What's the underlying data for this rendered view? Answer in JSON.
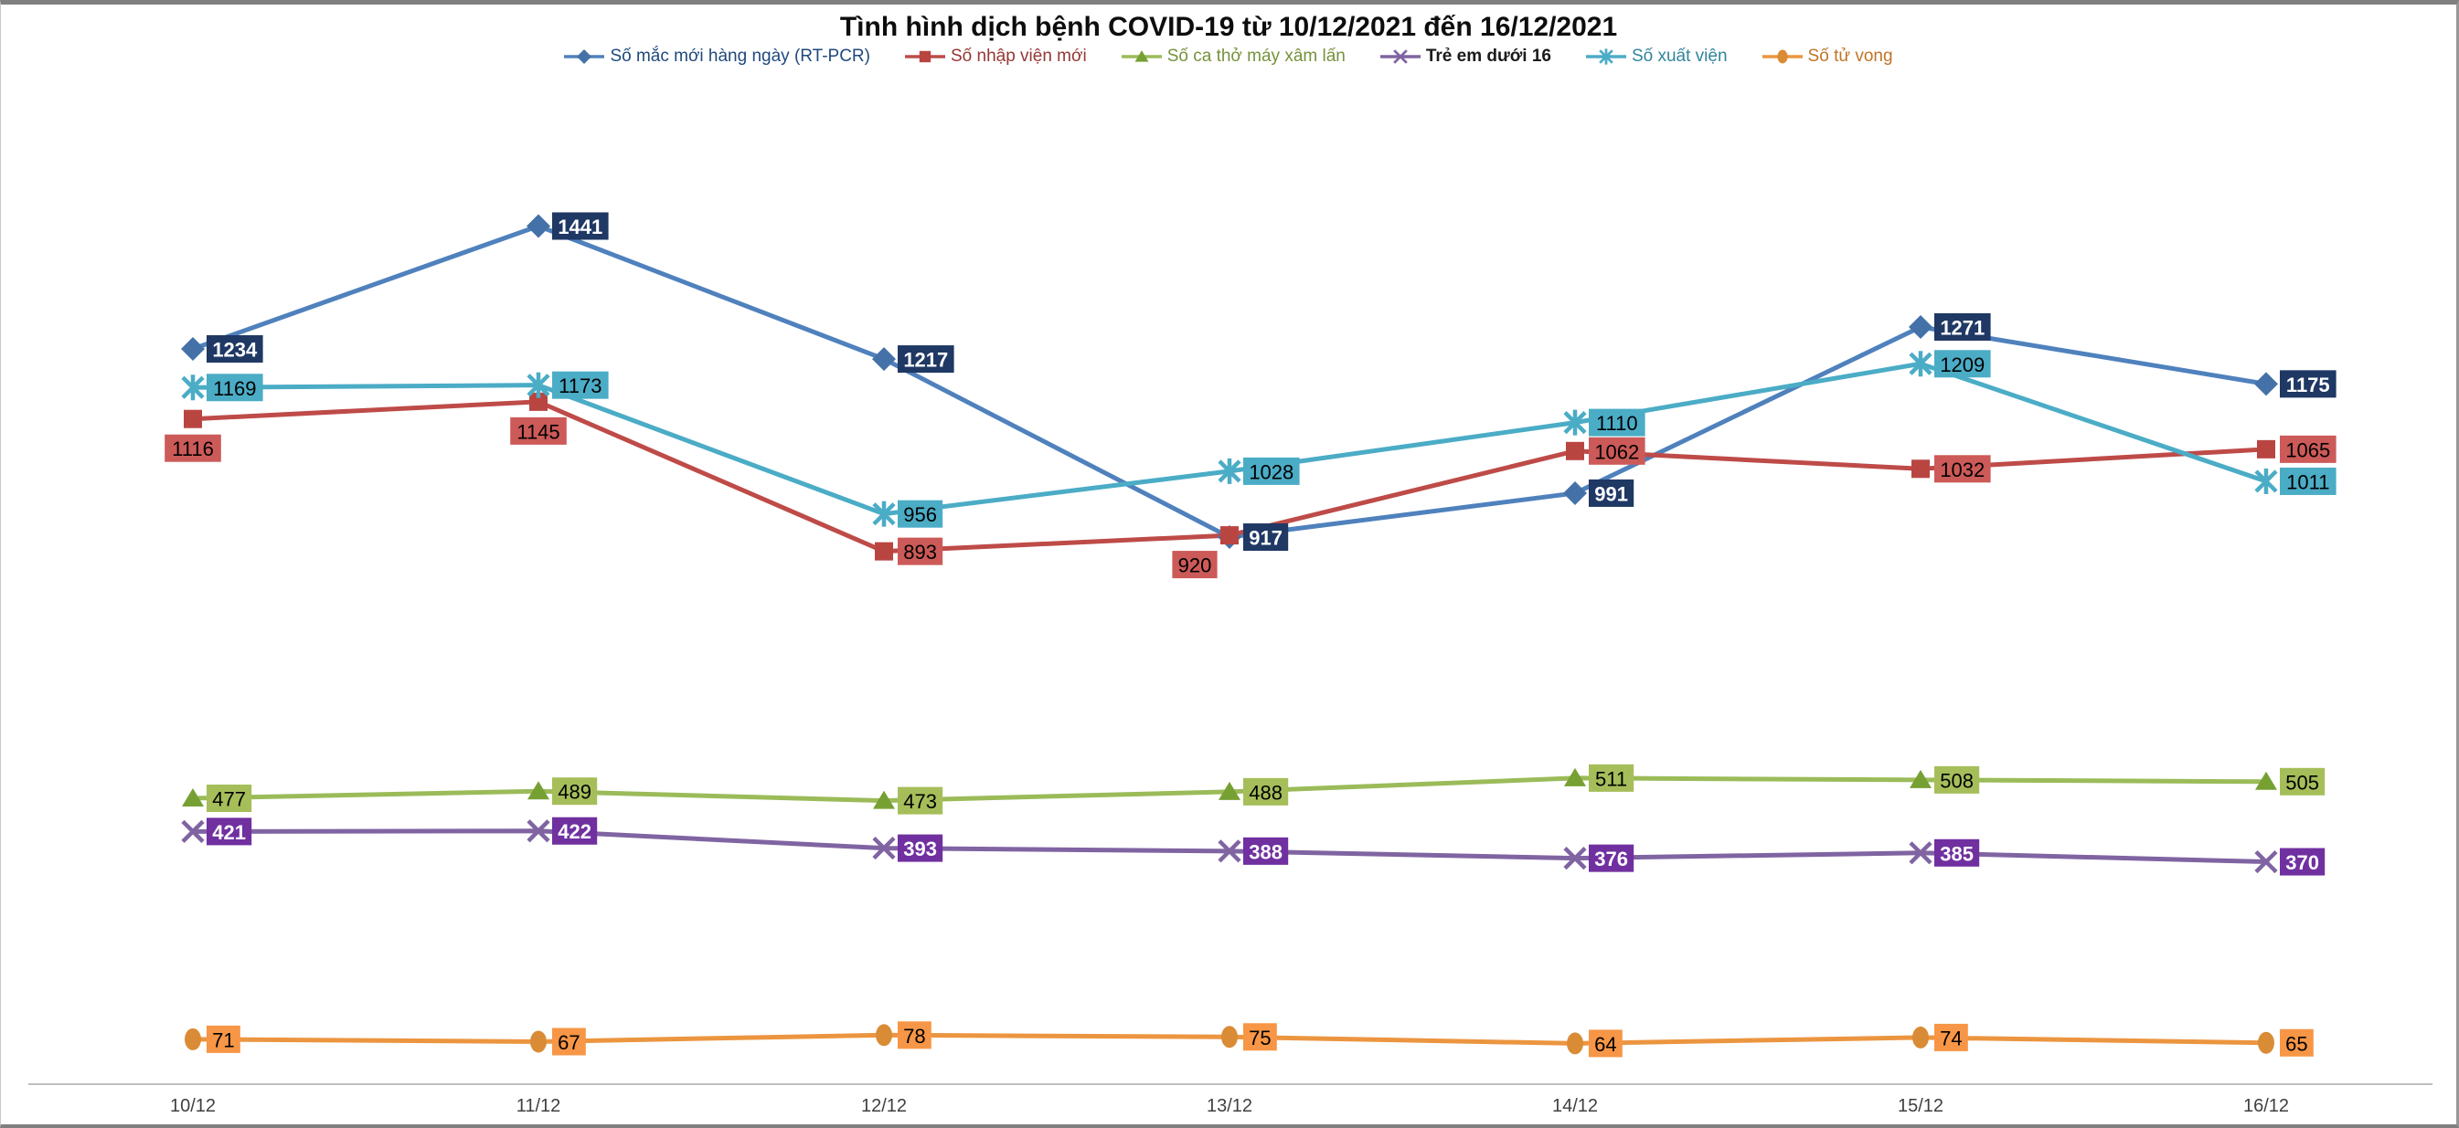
{
  "title": "Tình hình dịch bệnh COVID-19 từ 10/12/2021 đến 16/12/2021",
  "chart_data": {
    "type": "line",
    "title": "Tình hình dịch bệnh COVID-19 từ 10/12/2021 đến 16/12/2021",
    "categories": [
      "10/12",
      "11/12",
      "12/12",
      "13/12",
      "14/12",
      "15/12",
      "16/12"
    ],
    "xlabel": "",
    "ylabel": "",
    "ylim": [
      0,
      1550
    ],
    "grid": false,
    "legend_position": "top",
    "axis_line_color": "#BFBFBF",
    "axis_label_color": "#404040",
    "series": [
      {
        "name": "Số mắc mới hàng ngày (RT-PCR)",
        "values": [
          1234,
          1441,
          1217,
          917,
          991,
          1271,
          1175
        ],
        "marker": "diamond",
        "line_color": "#4F81BD",
        "marker_color": "#4472A8",
        "label_bg": "#1F3864",
        "label_text_color": "#FFFFFF",
        "label_bold": true,
        "legend_text_color": "#1F497D",
        "legend_bold": false,
        "label_sides": [
          "right",
          "right",
          "right",
          "right",
          "right",
          "right",
          "right"
        ]
      },
      {
        "name": "Số nhập viện mới",
        "values": [
          1116,
          1145,
          893,
          920,
          1062,
          1032,
          1065
        ],
        "marker": "square",
        "line_color": "#BE4B48",
        "marker_color": "#B94541",
        "label_bg": "#CC5A58",
        "label_text_color": "#000000",
        "label_bold": false,
        "legend_text_color": "#953735",
        "legend_bold": false,
        "label_sides": [
          "below",
          "below",
          "right",
          "below-left",
          "right",
          "right",
          "right"
        ]
      },
      {
        "name": "Số ca thở máy xâm lấn",
        "values": [
          477,
          489,
          473,
          488,
          511,
          508,
          505
        ],
        "marker": "triangle",
        "line_color": "#9BBB59",
        "marker_color": "#77A033",
        "label_bg": "#A6BE5A",
        "label_text_color": "#000000",
        "label_bold": false,
        "legend_text_color": "#76923C",
        "legend_bold": false,
        "label_sides": [
          "right",
          "right",
          "right",
          "right",
          "right",
          "right",
          "right"
        ]
      },
      {
        "name": "Trẻ em dưới 16",
        "values": [
          421,
          422,
          393,
          388,
          376,
          385,
          370
        ],
        "marker": "x",
        "line_color": "#8064A2",
        "marker_color": "#8064A2",
        "label_bg": "#7030A0",
        "label_text_color": "#FFFFFF",
        "label_bold": true,
        "legend_text_color": "#1a1a1a",
        "legend_bold": true,
        "label_sides": [
          "right",
          "right",
          "right",
          "right",
          "right",
          "right",
          "right"
        ]
      },
      {
        "name": "Số xuất viện",
        "values": [
          1169,
          1173,
          956,
          1028,
          1110,
          1209,
          1011
        ],
        "marker": "asterisk",
        "line_color": "#4BACC6",
        "marker_color": "#4BACC6",
        "label_bg": "#4BACC6",
        "label_text_color": "#000000",
        "label_bold": false,
        "legend_text_color": "#31859C",
        "legend_bold": false,
        "label_sides": [
          "right",
          "right",
          "right",
          "right",
          "right",
          "right",
          "right"
        ]
      },
      {
        "name": "Số tử vong",
        "values": [
          71,
          67,
          78,
          75,
          64,
          74,
          65
        ],
        "marker": "circle",
        "line_color": "#EC9540",
        "marker_color": "#D98C35",
        "label_bg": "#F79646",
        "label_text_color": "#000000",
        "label_bold": false,
        "legend_text_color": "#C07427",
        "legend_bold": false,
        "label_sides": [
          "right",
          "right",
          "right",
          "right",
          "right",
          "right",
          "right"
        ]
      }
    ]
  }
}
